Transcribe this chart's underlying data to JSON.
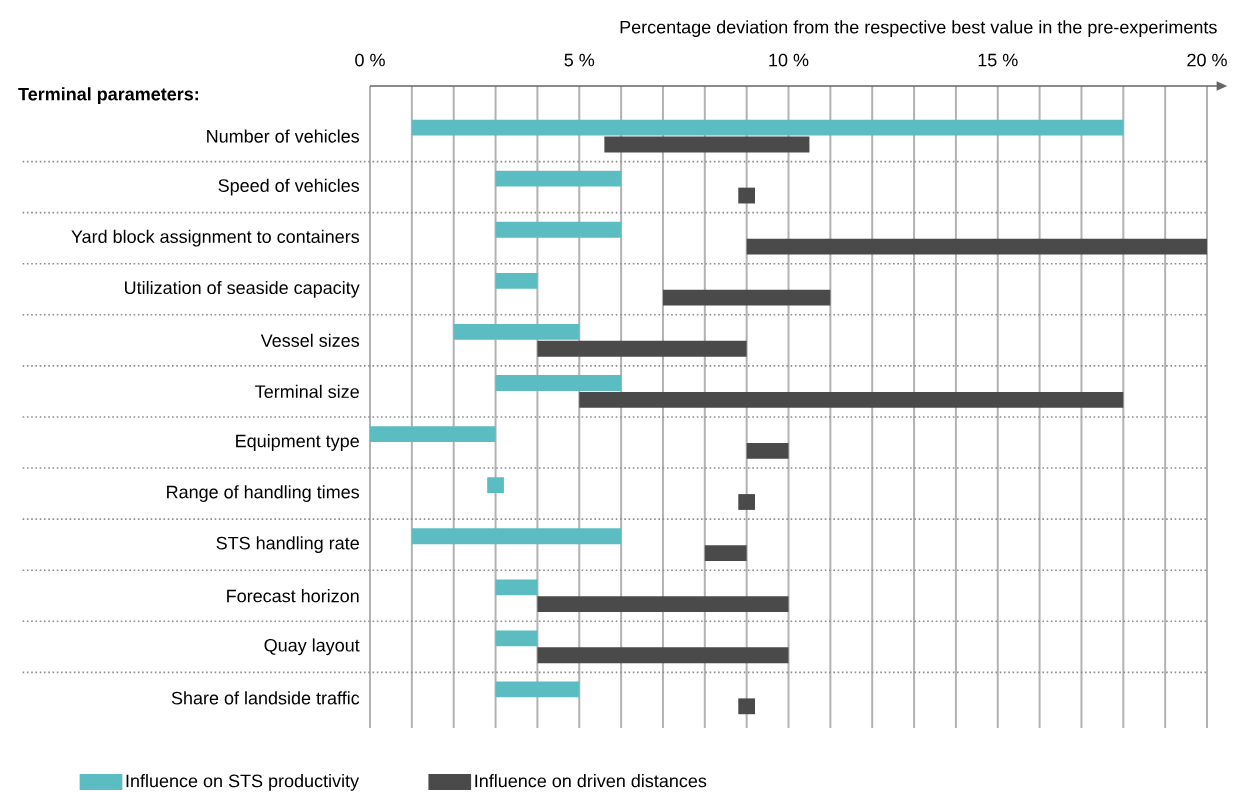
{
  "chart_data": {
    "type": "bar",
    "orientation": "horizontal",
    "xlabel": "Percentage deviation from the respective best value in the pre-experiments",
    "ylabel": "Terminal parameters:",
    "categories": [
      "Number of vehicles",
      "Speed of vehicles",
      "Yard block assignment to containers",
      "Utilization of seaside capacity",
      "Vessel sizes",
      "Terminal size",
      "Equipment type",
      "Range of handling times",
      "STS handling rate",
      "Forecast horizon",
      "Quay layout",
      "Share of landside traffic"
    ],
    "series": [
      {
        "name": "Influence on STS productivity",
        "color": "#5bbcc2",
        "base": [
          1,
          3,
          3,
          3,
          2,
          3,
          0,
          2.8,
          1,
          3,
          3,
          3
        ],
        "values": [
          17,
          3,
          3,
          1,
          3,
          3,
          3,
          0.4,
          5,
          1,
          1,
          2
        ]
      },
      {
        "name": "Influence on driven distances",
        "color": "#4a4a4a",
        "base": [
          5.6,
          8.8,
          9,
          7,
          4,
          5,
          9,
          8.8,
          8,
          4,
          4,
          8.8
        ],
        "values": [
          4.9,
          0.4,
          11,
          4,
          5,
          13,
          1,
          0.4,
          1,
          6,
          6,
          0.4
        ]
      }
    ],
    "xlim": [
      0,
      20
    ],
    "xticks": [
      {
        "value": 0,
        "label": "0 %"
      },
      {
        "value": 1,
        "label": null
      },
      {
        "value": 2,
        "label": null
      },
      {
        "value": 3,
        "label": null
      },
      {
        "value": 4,
        "label": null
      },
      {
        "value": 5,
        "label": "5 %"
      },
      {
        "value": 6,
        "label": null
      },
      {
        "value": 7,
        "label": null
      },
      {
        "value": 8,
        "label": null
      },
      {
        "value": 9,
        "label": null
      },
      {
        "value": 10,
        "label": "10 %"
      },
      {
        "value": 11,
        "label": null
      },
      {
        "value": 12,
        "label": null
      },
      {
        "value": 13,
        "label": null
      },
      {
        "value": 14,
        "label": null
      },
      {
        "value": 15,
        "label": "15 %"
      },
      {
        "value": 16,
        "label": null
      },
      {
        "value": 17,
        "label": null
      },
      {
        "value": 18,
        "label": null
      },
      {
        "value": 19,
        "label": null
      },
      {
        "value": 20,
        "label": "20 %"
      }
    ],
    "grid": "x",
    "legend": "bottom left"
  }
}
